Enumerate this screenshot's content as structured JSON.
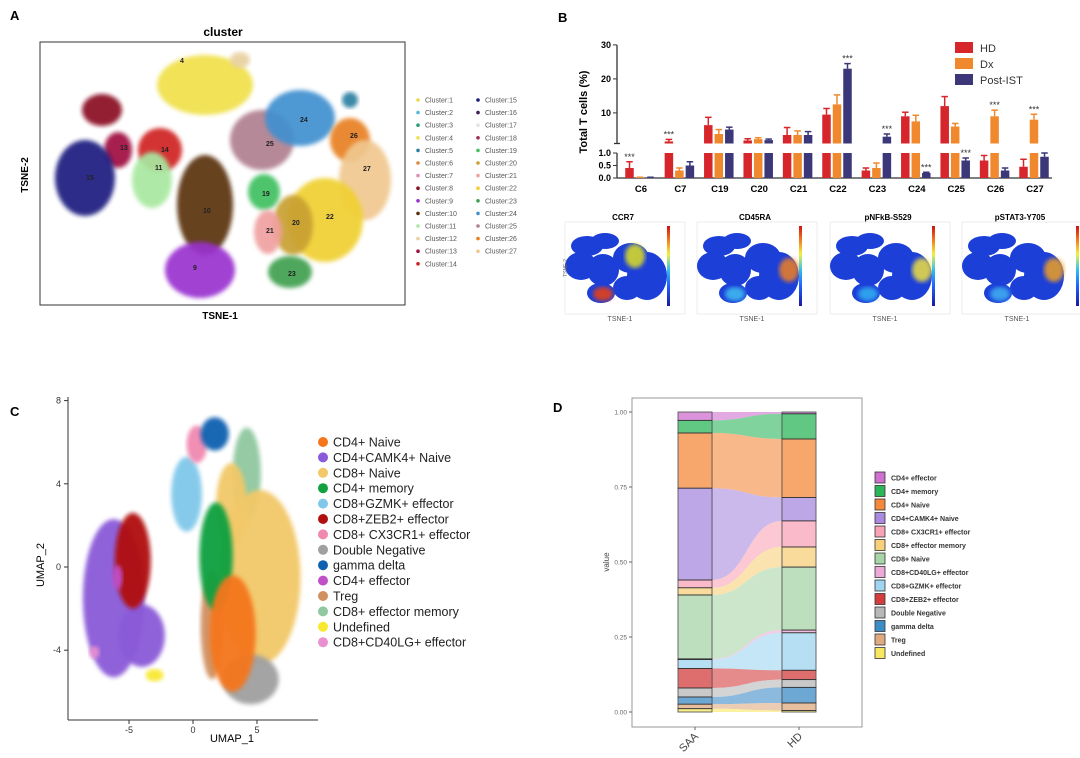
{
  "panels": {
    "a": "A",
    "b": "B",
    "c": "C",
    "d": "D"
  },
  "chart_data": [
    {
      "panel": "A",
      "type": "scatter",
      "title": "cluster",
      "xlabel": "TSNE-1",
      "ylabel": "TSNE-2",
      "legend_placement": "right",
      "legend": [
        {
          "name": "Cluster:1",
          "color": "#e8d84a"
        },
        {
          "name": "Cluster:2",
          "color": "#5bb8d8"
        },
        {
          "name": "Cluster:3",
          "color": "#2a9d7a"
        },
        {
          "name": "Cluster:4",
          "color": "#f0e04a"
        },
        {
          "name": "Cluster:5",
          "color": "#2a7fa0"
        },
        {
          "name": "Cluster:6",
          "color": "#e08a40"
        },
        {
          "name": "Cluster:7",
          "color": "#e090b8"
        },
        {
          "name": "Cluster:8",
          "color": "#8a1020"
        },
        {
          "name": "Cluster:9",
          "color": "#9a30d0"
        },
        {
          "name": "Cluster:10",
          "color": "#5a3010"
        },
        {
          "name": "Cluster:11",
          "color": "#a8e8a0"
        },
        {
          "name": "Cluster:12",
          "color": "#e8d0a0"
        },
        {
          "name": "Cluster:13",
          "color": "#a01040"
        },
        {
          "name": "Cluster:14",
          "color": "#d02020"
        },
        {
          "name": "Cluster:15",
          "color": "#1a1a80"
        },
        {
          "name": "Cluster:16",
          "color": "#402050"
        },
        {
          "name": "Cluster:17",
          "color": "#e8e0e8"
        },
        {
          "name": "Cluster:18",
          "color": "#a03050"
        },
        {
          "name": "Cluster:19",
          "color": "#40c060"
        },
        {
          "name": "Cluster:20",
          "color": "#c8a030"
        },
        {
          "name": "Cluster:21",
          "color": "#f0a0a0"
        },
        {
          "name": "Cluster:22",
          "color": "#f0d030"
        },
        {
          "name": "Cluster:23",
          "color": "#40a050"
        },
        {
          "name": "Cluster:24",
          "color": "#4090d0"
        },
        {
          "name": "Cluster:25",
          "color": "#b08090"
        },
        {
          "name": "Cluster:26",
          "color": "#e88020"
        },
        {
          "name": "Cluster:27",
          "color": "#f0c890"
        }
      ],
      "cluster_labels": [
        "4",
        "13",
        "14",
        "11",
        "15",
        "10",
        "9",
        "19",
        "25",
        "24",
        "26",
        "27",
        "22",
        "20",
        "21",
        "23"
      ]
    },
    {
      "panel": "B",
      "type": "bar",
      "ylabel": "Total T cells (%)",
      "categories": [
        "C6",
        "C7",
        "C19",
        "C20",
        "C21",
        "C22",
        "C23",
        "C24",
        "C25",
        "C26",
        "C27"
      ],
      "y_axis_break": [
        1.0,
        1.2
      ],
      "yticks_lower": [
        "0.0",
        "0.5",
        "1.0"
      ],
      "yticks_upper": [
        "10",
        "20",
        "30"
      ],
      "ylim": [
        0,
        30
      ],
      "legend_placement": "top-right",
      "series": [
        {
          "name": "HD",
          "color": "#d7262b",
          "values": [
            0.4,
            1.6,
            6.4,
            1.9,
            3.5,
            9.5,
            0.3,
            9.0,
            12.0,
            0.7,
            0.45
          ],
          "errors": [
            0.25,
            0.6,
            2.3,
            0.5,
            2.2,
            1.8,
            0.1,
            1.2,
            2.8,
            0.2,
            0.3
          ]
        },
        {
          "name": "Dx",
          "color": "#f0892e",
          "values": [
            0.02,
            0.3,
            3.8,
            2.3,
            3.5,
            12.5,
            0.4,
            7.5,
            6.0,
            9.0,
            8.0
          ],
          "errors": [
            0.01,
            0.1,
            1.3,
            0.4,
            1.2,
            2.8,
            0.2,
            1.8,
            0.9,
            1.8,
            1.6
          ]
        },
        {
          "name": "Post-IST",
          "color": "#3b3778",
          "values": [
            0.02,
            0.5,
            5.1,
            2.0,
            3.5,
            23.0,
            3.0,
            0.2,
            0.7,
            0.3,
            0.85
          ],
          "errors": [
            0.01,
            0.15,
            0.7,
            0.3,
            1.0,
            1.5,
            0.8,
            0.03,
            0.1,
            0.1,
            0.15
          ]
        }
      ],
      "significance": [
        {
          "category": "C6",
          "series": "HD",
          "label": "***"
        },
        {
          "category": "C7",
          "series": "HD",
          "label": "***"
        },
        {
          "category": "C22",
          "series": "Post-IST",
          "label": "***"
        },
        {
          "category": "C23",
          "series": "Post-IST",
          "label": "***"
        },
        {
          "category": "C24",
          "series": "Post-IST",
          "label": "***"
        },
        {
          "category": "C25",
          "series": "Post-IST",
          "label": "***"
        },
        {
          "category": "C26",
          "series": "Dx",
          "label": "***"
        },
        {
          "category": "C27",
          "series": "Dx",
          "label": "***"
        }
      ]
    },
    {
      "panel": "B",
      "type": "heatmap",
      "feature_plots": [
        {
          "title": "CCR7",
          "xlabel": "TSNE-1",
          "ylabel": "TSNE-2"
        },
        {
          "title": "CD45RA",
          "xlabel": "TSNE-1",
          "ylabel": ""
        },
        {
          "title": "pNFkB-S529",
          "xlabel": "TSNE-1",
          "ylabel": ""
        },
        {
          "title": "pSTAT3-Y705",
          "xlabel": "TSNE-1",
          "ylabel": ""
        }
      ],
      "colormap": [
        "#1a1aa0",
        "#2060ff",
        "#30c0f0",
        "#f0f040",
        "#f08020",
        "#d01010"
      ]
    },
    {
      "panel": "C",
      "type": "scatter",
      "xlabel": "UMAP_1",
      "ylabel": "UMAP_2",
      "xticks": [
        "-5",
        "0",
        "5"
      ],
      "yticks": [
        "8",
        "4",
        "0",
        "-4"
      ],
      "xlim": [
        -9,
        9
      ],
      "ylim": [
        -7.5,
        8
      ],
      "legend_placement": "right",
      "legend": [
        {
          "name": "CD4+ Naive",
          "color": "#f5761a"
        },
        {
          "name": "CD4+CAMK4+ Naive",
          "color": "#8a5ad8"
        },
        {
          "name": "CD8+ Naive",
          "color": "#f2c868"
        },
        {
          "name": "CD4+ memory",
          "color": "#10a040"
        },
        {
          "name": "CD8+GZMK+ effector",
          "color": "#80c8ea"
        },
        {
          "name": "CD8+ZEB2+ effector",
          "color": "#b01010"
        },
        {
          "name": "CD8+ CX3CR1+ effector",
          "color": "#f088b0"
        },
        {
          "name": "Double Negative",
          "color": "#a0a0a0"
        },
        {
          "name": "gamma delta",
          "color": "#1060b0"
        },
        {
          "name": "CD4+ effector",
          "color": "#c050c8"
        },
        {
          "name": "Treg",
          "color": "#d09060"
        },
        {
          "name": "CD8+ effector memory",
          "color": "#90c8a0"
        },
        {
          "name": "Undefined",
          "color": "#f8e830"
        },
        {
          "name": "CD8+CD40LG+ effector",
          "color": "#e890d0"
        }
      ]
    },
    {
      "panel": "D",
      "type": "area",
      "subtype": "alluvial stacked bar",
      "ylabel": "value",
      "categories": [
        "SAA",
        "HD"
      ],
      "yticks": [
        "0.00",
        "0.25",
        "0.50",
        "0.75",
        "1.00"
      ],
      "ylim": [
        0,
        1
      ],
      "legend_placement": "right",
      "series": [
        {
          "name": "CD4+ effector",
          "color": "#d070d0",
          "values": [
            0.028,
            0.006
          ]
        },
        {
          "name": "CD4+ memory",
          "color": "#2bb65a",
          "values": [
            0.042,
            0.084
          ]
        },
        {
          "name": "CD4+ Naive",
          "color": "#f5893b",
          "values": [
            0.184,
            0.195
          ]
        },
        {
          "name": "CD4+CAMK4+ Naive",
          "color": "#a98ae0",
          "values": [
            0.306,
            0.078
          ]
        },
        {
          "name": "CD8+ CX3CR1+ effector",
          "color": "#f9a3b8",
          "values": [
            0.026,
            0.087
          ]
        },
        {
          "name": "CD8+ effector memory",
          "color": "#f8d07a",
          "values": [
            0.024,
            0.067
          ]
        },
        {
          "name": "CD8+ Naive",
          "color": "#a8d5a8",
          "values": [
            0.213,
            0.21
          ]
        },
        {
          "name": "CD8+CD40LG+ effector",
          "color": "#ecaad8",
          "values": [
            0.002,
            0.009
          ]
        },
        {
          "name": "CD8+GZMK+ effector",
          "color": "#9fd5f0",
          "values": [
            0.03,
            0.125
          ]
        },
        {
          "name": "CD8+ZEB2+ effector",
          "color": "#d33d3d",
          "values": [
            0.065,
            0.031
          ]
        },
        {
          "name": "Double Negative",
          "color": "#b8b8b8",
          "values": [
            0.03,
            0.026
          ]
        },
        {
          "name": "gamma delta",
          "color": "#3d8cc8",
          "values": [
            0.024,
            0.052
          ]
        },
        {
          "name": "Treg",
          "color": "#e0aa80",
          "values": [
            0.015,
            0.025
          ]
        },
        {
          "name": "Undefined",
          "color": "#f8e860",
          "values": [
            0.011,
            0.005
          ]
        }
      ]
    }
  ]
}
